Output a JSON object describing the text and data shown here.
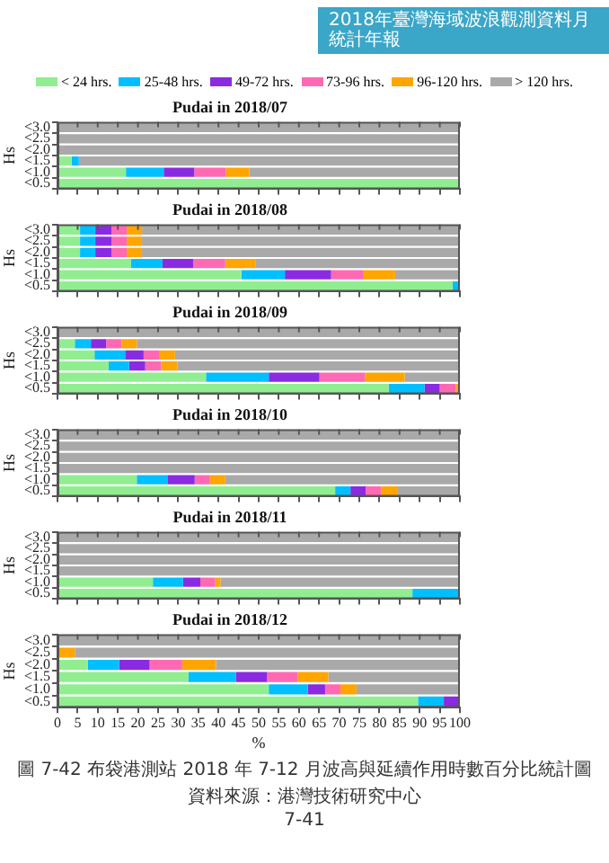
{
  "chart_data": [
    {
      "type": "bar",
      "orientation": "horizontal",
      "stacked": true,
      "title": "Pudai in 2018/07",
      "ylabel": "Hs",
      "categories": [
        "<3.0",
        "<2.5",
        "<2.0",
        "<1.5",
        "<1.0",
        "<0.5"
      ],
      "xlim": [
        0,
        100
      ],
      "xticks": [
        0,
        5,
        10,
        15,
        20,
        25,
        30,
        35,
        40,
        45,
        50,
        55,
        60,
        65,
        70,
        75,
        80,
        85,
        90,
        95,
        100
      ],
      "tick_labels": "y",
      "grid": false,
      "legend": "top",
      "annotations": [
        "2018年臺灣海域波浪觀測資料月統計年報"
      ],
      "series": [
        {
          "name": "< 24 hrs.",
          "color": "#90ee90",
          "values": [
            0,
            0,
            0,
            3.5,
            17,
            100
          ]
        },
        {
          "name": "25-48 hrs.",
          "color": "#00bfff",
          "values": [
            0,
            0,
            0,
            1.8,
            9.4,
            0
          ]
        },
        {
          "name": "49-72 hrs.",
          "color": "#8a2be2",
          "values": [
            0,
            0,
            0,
            0,
            7.6,
            0
          ]
        },
        {
          "name": "73-96 hrs.",
          "color": "#ff69b4",
          "values": [
            0,
            0,
            0,
            0,
            7.8,
            0
          ]
        },
        {
          "name": "96-120 hrs.",
          "color": "#ffa500",
          "values": [
            0,
            0,
            0,
            0,
            5.9,
            0
          ]
        },
        {
          "name": "> 120 hrs.",
          "color": "#a9a9a9",
          "values": [
            100,
            100,
            100,
            94.7,
            52.3,
            0
          ]
        }
      ]
    },
    {
      "type": "bar",
      "orientation": "horizontal",
      "stacked": true,
      "title": "Pudai in 2018/08",
      "ylabel": "Hs",
      "categories": [
        "<3.0",
        "<2.5",
        "<2.0",
        "<1.5",
        "<1.0",
        "<0.5"
      ],
      "xlim": [
        0,
        100
      ],
      "xticks": [
        0,
        5,
        10,
        15,
        20,
        25,
        30,
        35,
        40,
        45,
        50,
        55,
        60,
        65,
        70,
        75,
        80,
        85,
        90,
        95,
        100
      ],
      "tick_labels": "y",
      "grid": false,
      "series": [
        {
          "color": "#90ee90",
          "values": [
            5.6,
            5.6,
            5.6,
            18.3,
            45.7,
            98.2
          ]
        },
        {
          "color": "#00bfff",
          "values": [
            3.8,
            3.8,
            3.8,
            7.8,
            10.8,
            1.8
          ]
        },
        {
          "color": "#8a2be2",
          "values": [
            4,
            4,
            4,
            7.6,
            11.5,
            0
          ]
        },
        {
          "color": "#ff69b4",
          "values": [
            3.8,
            3.8,
            3.8,
            8,
            8.1,
            0
          ]
        },
        {
          "color": "#ffa500",
          "values": [
            3.8,
            3.8,
            3.8,
            7.6,
            7.8,
            0
          ]
        },
        {
          "color": "#a9a9a9",
          "values": [
            79,
            79,
            79,
            50.7,
            16.1,
            0
          ]
        }
      ]
    },
    {
      "type": "bar",
      "orientation": "horizontal",
      "stacked": true,
      "title": "Pudai in 2018/09",
      "ylabel": "Hs",
      "categories": [
        "<3.0",
        "<2.5",
        "<2.0",
        "<1.5",
        "<1.0",
        "<0.5"
      ],
      "xlim": [
        0,
        100
      ],
      "xticks": [
        0,
        5,
        10,
        15,
        20,
        25,
        30,
        35,
        40,
        45,
        50,
        55,
        60,
        65,
        70,
        75,
        80,
        85,
        90,
        95,
        100
      ],
      "tick_labels": "y",
      "grid": false,
      "series": [
        {
          "color": "#90ee90",
          "values": [
            0,
            4.3,
            9.2,
            12.7,
            36.9,
            82.3
          ]
        },
        {
          "color": "#00bfff",
          "values": [
            0,
            4,
            7.6,
            5.1,
            15.6,
            8.9
          ]
        },
        {
          "color": "#8a2be2",
          "values": [
            0,
            3.8,
            4.6,
            4,
            12.6,
            3.8
          ]
        },
        {
          "color": "#ff69b4",
          "values": [
            0,
            3.8,
            4,
            4,
            11.3,
            4
          ]
        },
        {
          "color": "#ffa500",
          "values": [
            0,
            3.8,
            3.8,
            4,
            9.9,
            1
          ]
        },
        {
          "color": "#a9a9a9",
          "values": [
            100,
            80.3,
            70.8,
            70.2,
            13.7,
            0
          ]
        }
      ]
    },
    {
      "type": "bar",
      "orientation": "horizontal",
      "stacked": true,
      "title": "Pudai in 2018/10",
      "ylabel": "Hs",
      "categories": [
        "<3.0",
        "<2.5",
        "<2.0",
        "<1.5",
        "<1.0",
        "<0.5"
      ],
      "xlim": [
        0,
        100
      ],
      "xticks": [
        0,
        5,
        10,
        15,
        20,
        25,
        30,
        35,
        40,
        45,
        50,
        55,
        60,
        65,
        70,
        75,
        80,
        85,
        90,
        95,
        100
      ],
      "tick_labels": "y",
      "grid": false,
      "series": [
        {
          "color": "#90ee90",
          "values": [
            0,
            0,
            0,
            0,
            19.7,
            69
          ]
        },
        {
          "color": "#00bfff",
          "values": [
            0,
            0,
            0,
            0,
            7.6,
            3.8
          ]
        },
        {
          "color": "#8a2be2",
          "values": [
            0,
            0,
            0,
            0,
            6.8,
            3.8
          ]
        },
        {
          "color": "#ff69b4",
          "values": [
            0,
            0,
            0,
            0,
            3.8,
            3.8
          ]
        },
        {
          "color": "#ffa500",
          "values": [
            0,
            0,
            0,
            0,
            3.8,
            4
          ]
        },
        {
          "color": "#a9a9a9",
          "values": [
            100,
            100,
            100,
            100,
            58.3,
            15.6
          ]
        }
      ]
    },
    {
      "type": "bar",
      "orientation": "horizontal",
      "stacked": true,
      "title": "Pudai in 2018/11",
      "ylabel": "Hs",
      "categories": [
        "<3.0",
        "<2.5",
        "<2.0",
        "<1.5",
        "<1.0",
        "<0.5"
      ],
      "xlim": [
        0,
        100
      ],
      "xticks": [
        0,
        5,
        10,
        15,
        20,
        25,
        30,
        35,
        40,
        45,
        50,
        55,
        60,
        65,
        70,
        75,
        80,
        85,
        90,
        95,
        100
      ],
      "tick_labels": "y",
      "grid": false,
      "series": [
        {
          "color": "#90ee90",
          "values": [
            0,
            0,
            0,
            0,
            23.7,
            88.2
          ]
        },
        {
          "color": "#00bfff",
          "values": [
            0,
            0,
            0,
            0,
            7.5,
            11.8
          ]
        },
        {
          "color": "#8a2be2",
          "values": [
            0,
            0,
            0,
            0,
            4.3,
            0
          ]
        },
        {
          "color": "#ff69b4",
          "values": [
            0,
            0,
            0,
            0,
            3.7,
            0
          ]
        },
        {
          "color": "#ffa500",
          "values": [
            0,
            0,
            0,
            0,
            1.3,
            0
          ]
        },
        {
          "color": "#a9a9a9",
          "values": [
            100,
            100,
            100,
            100,
            59.5,
            0
          ]
        }
      ]
    },
    {
      "type": "bar",
      "orientation": "horizontal",
      "stacked": true,
      "title": "Pudai in 2018/12",
      "ylabel": "Hs",
      "xlabel": "%",
      "categories": [
        "<3.0",
        "<2.5",
        "<2.0",
        "<1.5",
        "<1.0",
        "<0.5"
      ],
      "xlim": [
        0,
        100
      ],
      "xticks": [
        0,
        5,
        10,
        15,
        20,
        25,
        30,
        35,
        40,
        45,
        50,
        55,
        60,
        65,
        70,
        75,
        80,
        85,
        90,
        95,
        100
      ],
      "grid": false,
      "annotations": [
        "圖 7-42 布袋港測站 2018 年 7-12 月波高與延續作用時數百分比統計圖",
        "資料來源：港灣技術研究中心",
        "7-41"
      ],
      "series": [
        {
          "color": "#90ee90",
          "values": [
            0,
            0,
            7.5,
            32.5,
            52.5,
            89.6
          ]
        },
        {
          "color": "#00bfff",
          "values": [
            0,
            0,
            7.8,
            11.8,
            9.7,
            6.4
          ]
        },
        {
          "color": "#8a2be2",
          "values": [
            0,
            0,
            7.6,
            7.8,
            4.3,
            4
          ]
        },
        {
          "color": "#ff69b4",
          "values": [
            0,
            0,
            8.1,
            7.6,
            3.8,
            0
          ]
        },
        {
          "color": "#ffa500",
          "values": [
            0,
            4.3,
            8.4,
            7.6,
            4,
            0
          ]
        },
        {
          "color": "#a9a9a9",
          "values": [
            100,
            95.7,
            60.6,
            32.7,
            25.7,
            0
          ]
        }
      ]
    }
  ]
}
